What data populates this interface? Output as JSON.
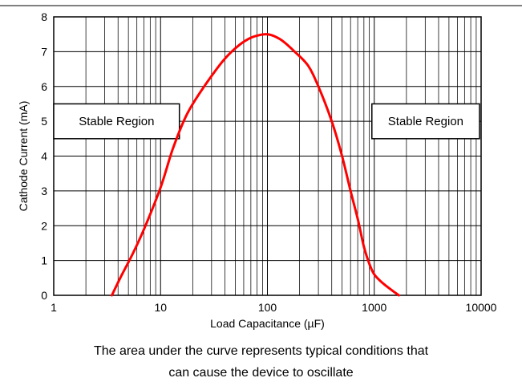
{
  "chart_data": {
    "type": "line",
    "title": "",
    "xlabel": "Load Capacitance (µF)",
    "ylabel": "Cathode Current (mA)",
    "x_scale": "log",
    "xlim": [
      1,
      10000
    ],
    "ylim": [
      0,
      8
    ],
    "x_ticks": [
      "1",
      "10",
      "100",
      "1000",
      "10000"
    ],
    "y_ticks": [
      "0",
      "1",
      "2",
      "3",
      "4",
      "5",
      "6",
      "7",
      "8"
    ],
    "grid": true,
    "series": [
      {
        "color": "#ff0000",
        "x": [
          3.5,
          4.2,
          5.5,
          7,
          10,
          13,
          17,
          22,
          30,
          40,
          55,
          70,
          85,
          100,
          115,
          140,
          180,
          240,
          300,
          400,
          500,
          600,
          700,
          800,
          900,
          1000,
          1200,
          1500,
          1700
        ],
        "y": [
          0,
          0.5,
          1.2,
          1.9,
          3.1,
          4.2,
          5.1,
          5.7,
          6.3,
          6.8,
          7.2,
          7.4,
          7.48,
          7.5,
          7.45,
          7.3,
          7.0,
          6.6,
          6.0,
          5.0,
          4.0,
          3.0,
          2.2,
          1.4,
          0.9,
          0.6,
          0.35,
          0.12,
          0
        ]
      }
    ],
    "annotations": [
      {
        "text": "Stable Region",
        "x_range": [
          1,
          15
        ],
        "y_range": [
          4.5,
          5.5
        ]
      },
      {
        "text": "Stable Region",
        "x_range": [
          950,
          10000
        ],
        "y_range": [
          4.5,
          5.5
        ]
      }
    ]
  },
  "caption": {
    "line1": "The area under the curve represents typical conditions that",
    "line2": "can cause the device to oscillate"
  }
}
